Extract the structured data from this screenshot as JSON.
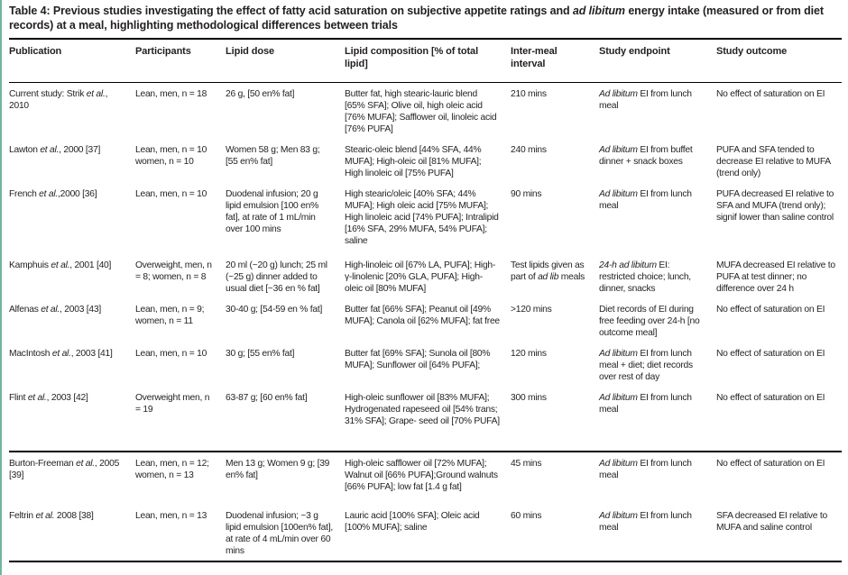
{
  "page": {
    "accent_color": "#6ab89d",
    "text_color": "#231f20",
    "rule_color": "#000000"
  },
  "title": {
    "segments": [
      {
        "t": "Table 4: Previous studies investigating the effect of fatty acid saturation on subjective appetite ratings and "
      },
      {
        "t": "ad libitum",
        "i": true
      },
      {
        "t": " energy intake (measured or from diet records) at a meal, highlighting methodological differences between trials"
      }
    ]
  },
  "table": {
    "columns": [
      {
        "label": "Publication"
      },
      {
        "label": "Participants"
      },
      {
        "label": "Lipid dose"
      },
      {
        "label": "Lipid composition [% of total lipid]"
      },
      {
        "label": "Inter-meal interval"
      },
      {
        "label": "Study endpoint"
      },
      {
        "label": "Study outcome"
      }
    ],
    "rows": [
      {
        "section_break_before": false,
        "cells": [
          [
            {
              "t": "Current study: Strik "
            },
            {
              "t": "et al.",
              "i": true
            },
            {
              "t": ", 2010"
            }
          ],
          [
            {
              "t": "Lean, men, n = 18"
            }
          ],
          [
            {
              "t": "26 g, [50 en% fat]"
            }
          ],
          [
            {
              "t": "Butter fat, high stearic-lauric blend [65% SFA]; Olive oil, high oleic acid [76% MUFA]; Safflower oil, linoleic acid [76% PUFA]"
            }
          ],
          [
            {
              "t": "210 mins"
            }
          ],
          [
            {
              "t": "Ad libitum",
              "i": true
            },
            {
              "t": " EI from lunch meal"
            }
          ],
          [
            {
              "t": "No effect of saturation on EI"
            }
          ]
        ]
      },
      {
        "section_break_before": false,
        "cells": [
          [
            {
              "t": "Lawton "
            },
            {
              "t": "et al.",
              "i": true
            },
            {
              "t": ", 2000 [37]"
            }
          ],
          [
            {
              "t": "Lean, men, n = 10 women, n = 10"
            }
          ],
          [
            {
              "t": "Women 58 g; Men 83 g; [55 en% fat]"
            }
          ],
          [
            {
              "t": "Stearic-oleic blend [44% SFA, 44% MUFA]; High-oleic oil [81% MUFA]; High linoleic oil [75% PUFA]"
            }
          ],
          [
            {
              "t": "240 mins"
            }
          ],
          [
            {
              "t": "Ad libitum",
              "i": true
            },
            {
              "t": " EI from buffet dinner + snack boxes"
            }
          ],
          [
            {
              "t": "PUFA and SFA tended to decrease EI relative to MUFA (trend only)"
            }
          ]
        ]
      },
      {
        "section_break_before": false,
        "cells": [
          [
            {
              "t": "French "
            },
            {
              "t": "et al.",
              "i": true
            },
            {
              "t": ",2000 [36]"
            }
          ],
          [
            {
              "t": "Lean, men, n = 10"
            }
          ],
          [
            {
              "t": "Duodenal infusion; 20 g lipid emulsion [100 en% fat], at rate of 1 mL/min over 100 mins"
            }
          ],
          [
            {
              "t": "High stearic/oleic [40% SFA; 44% MUFA]; High oleic acid [75% MUFA]; High linoleic acid [74% PUFA]; Intralipid [16% SFA, 29% MUFA, 54% PUFA]; saline"
            }
          ],
          [
            {
              "t": "90 mins"
            }
          ],
          [
            {
              "t": "Ad libitum",
              "i": true
            },
            {
              "t": " EI from lunch meal"
            }
          ],
          [
            {
              "t": "PUFA decreased EI relative to SFA and MUFA (trend only); signif lower than saline control"
            }
          ]
        ]
      },
      {
        "section_break_before": false,
        "cells": [
          [
            {
              "t": "Kamphuis "
            },
            {
              "t": "et al.",
              "i": true
            },
            {
              "t": ", 2001 [40]"
            }
          ],
          [
            {
              "t": "Overweight, men, n = 8; women, n = 8"
            }
          ],
          [
            {
              "t": "20 ml (~20 g) lunch; 25 ml (~25 g) dinner added to usual diet [~36 en % fat]"
            }
          ],
          [
            {
              "t": "High-linoleic oil [67% LA, PUFA]; High-γ-linolenic [20% GLA, PUFA]; High-oleic oil [80% MUFA]"
            }
          ],
          [
            {
              "t": "Test lipids given as part of "
            },
            {
              "t": "ad lib",
              "i": true
            },
            {
              "t": " meals"
            }
          ],
          [
            {
              "t": "24-h ad libitum",
              "i": true
            },
            {
              "t": " EI: restricted choice; lunch, dinner, snacks"
            }
          ],
          [
            {
              "t": "MUFA decreased EI relative to PUFA at test dinner; no difference over 24 h"
            }
          ]
        ]
      },
      {
        "section_break_before": false,
        "cells": [
          [
            {
              "t": "Alfenas "
            },
            {
              "t": "et al.",
              "i": true
            },
            {
              "t": ", 2003 [43]"
            }
          ],
          [
            {
              "t": "Lean, men, n = 9; women, n = 11"
            }
          ],
          [
            {
              "t": "30-40 g; [54-59 en % fat]"
            }
          ],
          [
            {
              "t": "Butter fat [66% SFA]; Peanut oil [49% MUFA]; Canola oil [62% MUFA]; fat free"
            }
          ],
          [
            {
              "t": ">120 mins"
            }
          ],
          [
            {
              "t": "Diet records of EI during free feeding over 24-h [no outcome meal]"
            }
          ],
          [
            {
              "t": "No effect of saturation on EI"
            }
          ]
        ]
      },
      {
        "section_break_before": false,
        "cells": [
          [
            {
              "t": "MacIntosh "
            },
            {
              "t": "et al.",
              "i": true
            },
            {
              "t": ", 2003 [41]"
            }
          ],
          [
            {
              "t": "Lean, men, n = 10"
            }
          ],
          [
            {
              "t": "30 g; [55 en% fat]"
            }
          ],
          [
            {
              "t": "Butter fat [69% SFA]; Sunola oil [80% MUFA]; Sunflower oil [64% PUFA];"
            }
          ],
          [
            {
              "t": "120 mins"
            }
          ],
          [
            {
              "t": "Ad libitum",
              "i": true
            },
            {
              "t": " EI from lunch meal + diet; diet records over rest of day"
            }
          ],
          [
            {
              "t": "No effect of saturation on EI"
            }
          ]
        ]
      },
      {
        "section_break_before": false,
        "cells": [
          [
            {
              "t": "Flint "
            },
            {
              "t": "et al.",
              "i": true
            },
            {
              "t": ", 2003 [42]"
            }
          ],
          [
            {
              "t": "Overweight men, n = 19"
            }
          ],
          [
            {
              "t": "63-87 g; [60 en% fat]"
            }
          ],
          [
            {
              "t": "High-oleic sunflower oil [83% MUFA]; Hydrogenated rapeseed oil [54% trans; 31% SFA]; Grape- seed oil [70% PUFA]"
            }
          ],
          [
            {
              "t": "300 mins"
            }
          ],
          [
            {
              "t": "Ad libitum",
              "i": true
            },
            {
              "t": " EI from lunch meal"
            }
          ],
          [
            {
              "t": "No effect of saturation on EI"
            }
          ]
        ]
      },
      {
        "section_break_before": true,
        "cells": [
          [
            {
              "t": "Burton-Freeman "
            },
            {
              "t": "et al.",
              "i": true
            },
            {
              "t": ", 2005 [39]"
            }
          ],
          [
            {
              "t": "Lean, men, n = 12; women, n = 13"
            }
          ],
          [
            {
              "t": "Men 13 g; Women 9 g; [39 en% fat]"
            }
          ],
          [
            {
              "t": "High-oleic safflower oil [72% MUFA]; Walnut oil [66% PUFA];Ground walnuts [66% PUFA]; low fat [1.4 g fat]"
            }
          ],
          [
            {
              "t": "45 mins"
            }
          ],
          [
            {
              "t": "Ad libitum",
              "i": true
            },
            {
              "t": " EI from lunch meal"
            }
          ],
          [
            {
              "t": "No effect of saturation on EI"
            }
          ]
        ]
      },
      {
        "section_break_before": false,
        "cells": [
          [
            {
              "t": "Feltrin "
            },
            {
              "t": "et al.",
              "i": true
            },
            {
              "t": " 2008 [38]"
            }
          ],
          [
            {
              "t": "Lean, men, n = 13"
            }
          ],
          [
            {
              "t": "Duodenal infusion; ~3 g lipid emulsion [100en% fat], at rate of 4 mL/min over 60 mins"
            }
          ],
          [
            {
              "t": "Lauric acid [100% SFA]; Oleic acid [100% MUFA]; saline"
            }
          ],
          [
            {
              "t": "60 mins"
            }
          ],
          [
            {
              "t": "Ad libitum",
              "i": true
            },
            {
              "t": " EI from lunch meal"
            }
          ],
          [
            {
              "t": "SFA decreased EI relative to MUFA and saline control"
            }
          ]
        ]
      }
    ]
  }
}
